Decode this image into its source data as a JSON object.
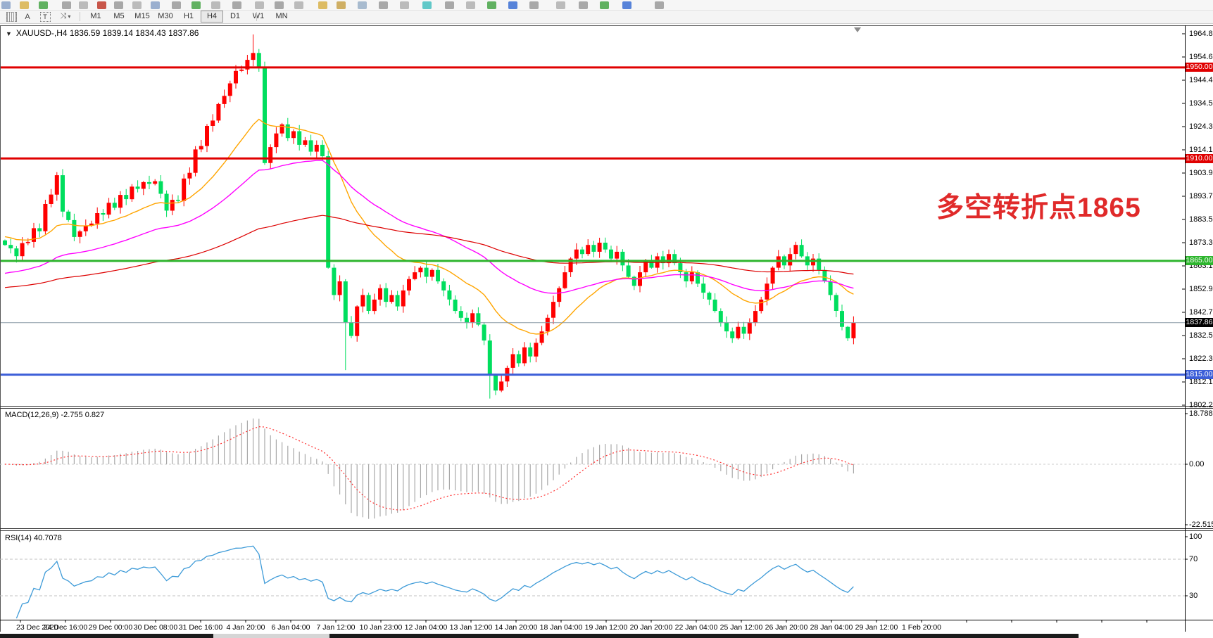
{
  "toolbar_row2": {
    "text_icon_a": "A",
    "text_icon_t": "T",
    "timeframes": [
      "M1",
      "M5",
      "M15",
      "M30",
      "H1",
      "H4",
      "D1",
      "W1",
      "MN"
    ],
    "selected_timeframe": "H4"
  },
  "chart_data": {
    "type": "candlestick",
    "title_text": "XAUUSD-,H4  1836.59 1839.14 1834.43 1837.86",
    "symbol": "XAUUSD-",
    "period": "H4",
    "open": "1836.59",
    "high": "1839.14",
    "low": "1834.43",
    "close": "1837.86",
    "annotation": {
      "text": "多空转折点1865",
      "color": "#e02a2a"
    },
    "price_axis_labels": [
      "1964.80",
      "1954.60",
      "1944.40",
      "1934.50",
      "1924.30",
      "1914.10",
      "1903.90",
      "1893.70",
      "1883.50",
      "1873.30",
      "1863.10",
      "1852.90",
      "1842.70",
      "1832.50",
      "1822.30",
      "1812.10",
      "1802.20"
    ],
    "hlines": [
      {
        "price": 1950.0,
        "label": "1950.00",
        "color": "#e00000",
        "width": 3
      },
      {
        "price": 1910.0,
        "label": "1910.00",
        "color": "#e00000",
        "width": 3
      },
      {
        "price": 1865.0,
        "label": "1865.00",
        "color": "#2db52d",
        "width": 3
      },
      {
        "price": 1815.0,
        "label": "1815.00",
        "color": "#3c5ed8",
        "width": 3
      }
    ],
    "current_price": {
      "value": "1837.86",
      "price": 1837.86
    },
    "colors": {
      "up": "#ff0000",
      "down": "#00de5e",
      "ma_fast": "#ffa500",
      "ma_mid": "#ff00ff",
      "ma_slow": "#dd0000",
      "macd_hist": "#a8a8a8",
      "macd_signal": "#ff3030",
      "rsi_line": "#3e9bd8"
    },
    "ma_periods": {
      "fast": 20,
      "mid": 48,
      "slow": 130
    },
    "ma_seeds": {
      "fast": 1876,
      "mid": 1859,
      "slow": 1853
    },
    "candle_count": 148,
    "price_waypoints": [
      [
        0,
        1872
      ],
      [
        2,
        1868
      ],
      [
        4,
        1875
      ],
      [
        6,
        1880
      ],
      [
        8,
        1896
      ],
      [
        9,
        1901
      ],
      [
        10,
        1888
      ],
      [
        12,
        1876
      ],
      [
        14,
        1880
      ],
      [
        17,
        1887
      ],
      [
        20,
        1892
      ],
      [
        23,
        1898
      ],
      [
        26,
        1900
      ],
      [
        28,
        1888
      ],
      [
        30,
        1893
      ],
      [
        33,
        1912
      ],
      [
        36,
        1928
      ],
      [
        38,
        1938
      ],
      [
        40,
        1948
      ],
      [
        42,
        1952
      ],
      [
        43,
        1958
      ],
      [
        44,
        1950
      ],
      [
        45,
        1908
      ],
      [
        46,
        1915
      ],
      [
        47,
        1921
      ],
      [
        48,
        1925
      ],
      [
        49,
        1919
      ],
      [
        50,
        1922
      ],
      [
        51,
        1916
      ],
      [
        52,
        1918
      ],
      [
        53,
        1913
      ],
      [
        54,
        1916
      ],
      [
        55,
        1911
      ],
      [
        56,
        1862
      ],
      [
        57,
        1850
      ],
      [
        58,
        1856
      ],
      [
        59,
        1838
      ],
      [
        60,
        1832
      ],
      [
        61,
        1845
      ],
      [
        62,
        1850
      ],
      [
        63,
        1843
      ],
      [
        64,
        1848
      ],
      [
        65,
        1853
      ],
      [
        66,
        1847
      ],
      [
        67,
        1850
      ],
      [
        68,
        1845
      ],
      [
        69,
        1852
      ],
      [
        70,
        1857
      ],
      [
        71,
        1860
      ],
      [
        72,
        1862
      ],
      [
        73,
        1858
      ],
      [
        74,
        1861
      ],
      [
        75,
        1856
      ],
      [
        76,
        1852
      ],
      [
        77,
        1848
      ],
      [
        78,
        1843
      ],
      [
        79,
        1840
      ],
      [
        80,
        1838
      ],
      [
        81,
        1842
      ],
      [
        82,
        1837
      ],
      [
        83,
        1830
      ],
      [
        84,
        1815
      ],
      [
        85,
        1808
      ],
      [
        86,
        1812
      ],
      [
        87,
        1818
      ],
      [
        88,
        1824
      ],
      [
        89,
        1820
      ],
      [
        90,
        1827
      ],
      [
        91,
        1823
      ],
      [
        92,
        1829
      ],
      [
        93,
        1834
      ],
      [
        94,
        1840
      ],
      [
        95,
        1847
      ],
      [
        96,
        1853
      ],
      [
        97,
        1860
      ],
      [
        98,
        1866
      ],
      [
        99,
        1870
      ],
      [
        100,
        1868
      ],
      [
        101,
        1872
      ],
      [
        102,
        1869
      ],
      [
        103,
        1873
      ],
      [
        104,
        1870
      ],
      [
        105,
        1866
      ],
      [
        106,
        1869
      ],
      [
        107,
        1863
      ],
      [
        108,
        1858
      ],
      [
        109,
        1854
      ],
      [
        110,
        1860
      ],
      [
        111,
        1865
      ],
      [
        112,
        1862
      ],
      [
        113,
        1867
      ],
      [
        114,
        1864
      ],
      [
        115,
        1868
      ],
      [
        116,
        1864
      ],
      [
        117,
        1860
      ],
      [
        118,
        1856
      ],
      [
        119,
        1860
      ],
      [
        120,
        1855
      ],
      [
        121,
        1851
      ],
      [
        122,
        1848
      ],
      [
        123,
        1843
      ],
      [
        124,
        1838
      ],
      [
        125,
        1834
      ],
      [
        126,
        1831
      ],
      [
        127,
        1836
      ],
      [
        128,
        1833
      ],
      [
        129,
        1838
      ],
      [
        130,
        1843
      ],
      [
        131,
        1848
      ],
      [
        132,
        1855
      ],
      [
        133,
        1862
      ],
      [
        134,
        1867
      ],
      [
        135,
        1863
      ],
      [
        136,
        1868
      ],
      [
        137,
        1872
      ],
      [
        138,
        1867
      ],
      [
        139,
        1863
      ],
      [
        140,
        1866
      ],
      [
        141,
        1861
      ],
      [
        142,
        1856
      ],
      [
        143,
        1850
      ],
      [
        144,
        1843
      ],
      [
        145,
        1836
      ],
      [
        146,
        1831
      ],
      [
        147,
        1837.86
      ]
    ],
    "spikes": {
      "43": {
        "high": 1964.5
      },
      "59": {
        "low": 1817
      },
      "84": {
        "low": 1804.5
      }
    }
  },
  "macd_pane": {
    "label": "MACD(12,26,9) -2.755 0.827",
    "params": "12,26,9",
    "value_main": "-2.755",
    "value_signal": "0.827",
    "axis_labels": [
      "18.788",
      "0.00",
      "-22.515"
    ]
  },
  "rsi_pane": {
    "label": "RSI(14) 40.7078",
    "params": "14",
    "value": "40.7078",
    "axis_labels": [
      "100",
      "70",
      "30"
    ]
  },
  "x_axis": {
    "labels": [
      "23 Dec 2020",
      "24 Dec 16:00",
      "29 Dec 00:00",
      "30 Dec 08:00",
      "31 Dec 16:00",
      "4 Jan 20:00",
      "6 Jan 04:00",
      "7 Jan 12:00",
      "10 Jan 23:00",
      "12 Jan 04:00",
      "13 Jan 12:00",
      "14 Jan 20:00",
      "18 Jan 04:00",
      "19 Jan 12:00",
      "20 Jan 20:00",
      "22 Jan 04:00",
      "25 Jan 12:00",
      "26 Jan 20:00",
      "28 Jan 04:00",
      "29 Jan 12:00",
      "1 Feb 20:00"
    ]
  }
}
